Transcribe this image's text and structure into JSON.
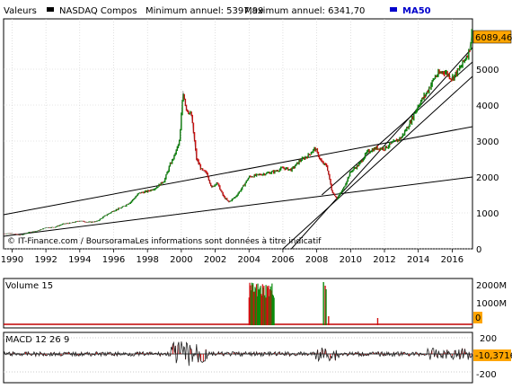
{
  "header": {
    "label": "Valeurs",
    "series_name": "NASDAQ Compos",
    "min_text": "Minimum annuel: 5397,99",
    "max_text": "Maximum annuel: 6341,70",
    "ma_label": "MA50"
  },
  "colors": {
    "price_up": "#0a8a0a",
    "price_down": "#d01010",
    "trendline": "#000000",
    "ma_legend": "#0000cc",
    "last_badge": "#ffa500",
    "volume_bg_bar": "#c00000",
    "grid": "#cccccc"
  },
  "credit": "© IT-Finance.com / BoursoramaLes informations sont données à titre indicatif",
  "last_value_label": "6089,46",
  "chart_data": [
    {
      "type": "line",
      "name": "price",
      "x_ticks": [
        "1990",
        "1992",
        "1994",
        "1996",
        "1998",
        "2000",
        "2002",
        "2004",
        "2006",
        "2008",
        "2010",
        "2012",
        "2014",
        "2016"
      ],
      "y_ticks": [
        0,
        1000,
        2000,
        3000,
        4000,
        5000
      ],
      "ylim": [
        0,
        6400
      ],
      "xlim": [
        1989.5,
        2017.2
      ],
      "x": [
        1989.5,
        1990.0,
        1990.5,
        1991.0,
        1991.5,
        1992.0,
        1992.5,
        1993.0,
        1993.5,
        1994.0,
        1994.5,
        1995.0,
        1995.5,
        1996.0,
        1996.5,
        1997.0,
        1997.5,
        1998.0,
        1998.5,
        1999.0,
        1999.3,
        1999.6,
        1999.9,
        2000.1,
        2000.3,
        2000.6,
        2000.9,
        2001.2,
        2001.5,
        2001.8,
        2002.1,
        2002.5,
        2002.8,
        2003.2,
        2003.6,
        2004.0,
        2004.5,
        2005.0,
        2005.5,
        2006.0,
        2006.5,
        2007.0,
        2007.5,
        2007.9,
        2008.3,
        2008.6,
        2008.9,
        2009.2,
        2009.6,
        2010.0,
        2010.5,
        2011.0,
        2011.5,
        2012.0,
        2012.5,
        2013.0,
        2013.5,
        2014.0,
        2014.5,
        2015.0,
        2015.5,
        2016.0,
        2016.5,
        2017.0,
        2017.2
      ],
      "values": [
        420,
        430,
        370,
        460,
        500,
        590,
        600,
        690,
        720,
        780,
        740,
        760,
        920,
        1060,
        1150,
        1300,
        1550,
        1600,
        1700,
        1900,
        2300,
        2600,
        3000,
        4400,
        3900,
        3700,
        2500,
        2200,
        2100,
        1700,
        1850,
        1450,
        1300,
        1450,
        1700,
        2000,
        2050,
        2100,
        2150,
        2250,
        2200,
        2450,
        2600,
        2800,
        2400,
        2300,
        1600,
        1400,
        1700,
        2150,
        2350,
        2700,
        2800,
        2800,
        2950,
        3100,
        3500,
        4000,
        4350,
        4800,
        4950,
        4750,
        5050,
        5500,
        6089
      ]
    },
    {
      "type": "bar",
      "name": "Volume 15",
      "y_ticks": [
        "2000M",
        "1000M"
      ],
      "last_value_label": "0",
      "ylim": [
        0,
        2400
      ]
    },
    {
      "type": "line",
      "name": "MACD 12 26 9",
      "y_ticks": [
        "200",
        "-200"
      ],
      "last_value_label": "-10,3716",
      "ylim": [
        -300,
        300
      ]
    }
  ]
}
